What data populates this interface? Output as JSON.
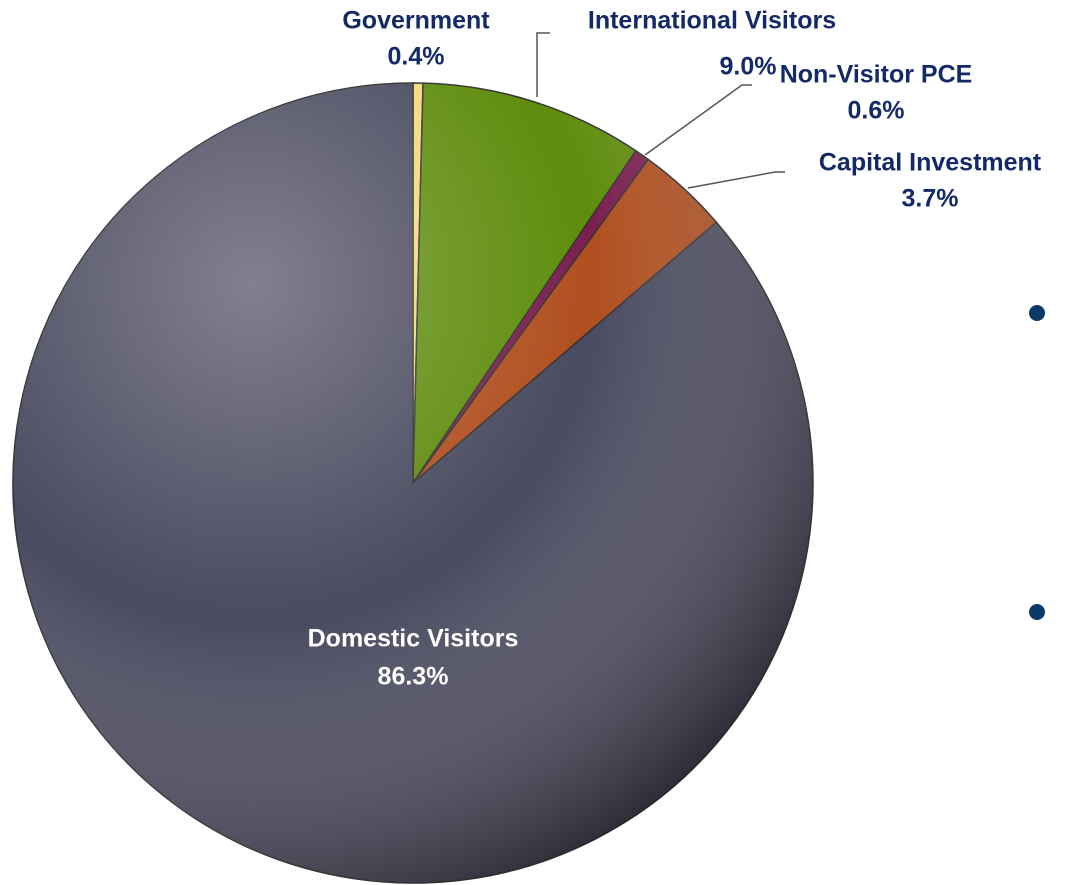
{
  "chart_data": {
    "type": "pie",
    "categories": [
      "Government",
      "International Visitors",
      "Non-Visitor PCE",
      "Capital Investment",
      "Domestic Visitors"
    ],
    "values": [
      0.4,
      9.0,
      0.6,
      3.7,
      86.3
    ],
    "value_labels": [
      "0.4%",
      "9.0%",
      "0.6%",
      "3.7%",
      "86.3%"
    ],
    "colors": [
      "#f6d878",
      "#5e8c0c",
      "#7a1f4e",
      "#b04e1e",
      "#4a4a60"
    ]
  }
}
